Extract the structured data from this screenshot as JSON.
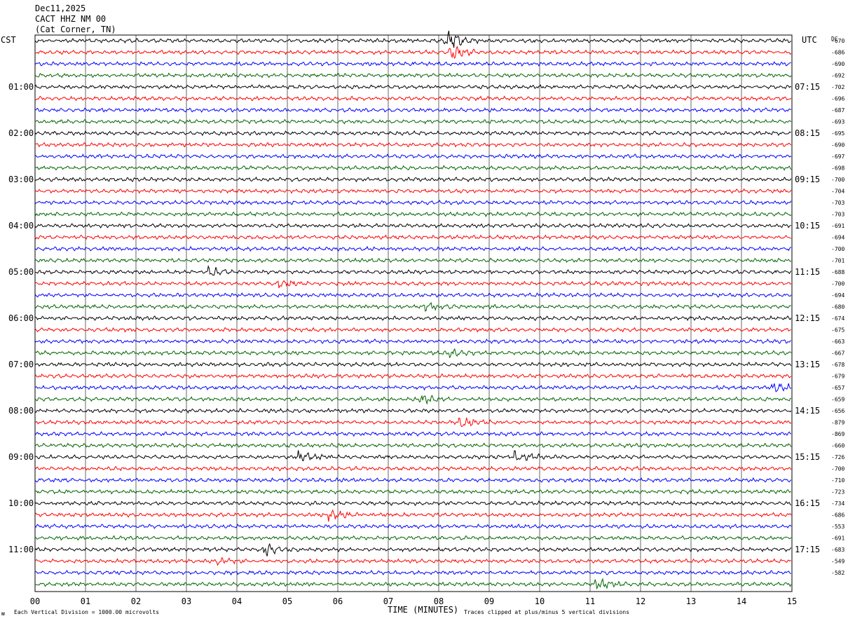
{
  "header": {
    "date": "Dec11,2025",
    "station": "CACT HHZ NM 00",
    "location": "(Cat Corner, TN)"
  },
  "axes": {
    "left_label": "CST",
    "right_label": "UTC",
    "dc_label": "DC",
    "x_title": "TIME (MINUTES)"
  },
  "footer": {
    "left_note": "Each Vertical Division = 1000.00 microvolts",
    "right_note": "Traces clipped at plus/minus 5 vertical divisions",
    "logo_mark": "ᴍ"
  },
  "colors": {
    "trace_cycle": [
      "#000000",
      "#ff0000",
      "#0000ff",
      "#006400"
    ],
    "grid": "#000000"
  },
  "chart_data": {
    "type": "line",
    "description_kind": "helicorder",
    "x_ticks": [
      "00",
      "01",
      "02",
      "03",
      "04",
      "05",
      "06",
      "07",
      "08",
      "09",
      "10",
      "11",
      "12",
      "13",
      "14",
      "15"
    ],
    "xlim": [
      0,
      15
    ],
    "rows_count": 48,
    "cst_labels": [
      "01:00",
      "02:00",
      "03:00",
      "04:00",
      "05:00",
      "06:00",
      "07:00",
      "08:00",
      "09:00",
      "10:00",
      "11:00"
    ],
    "utc_labels": [
      "07:15",
      "08:15",
      "09:15",
      "10:15",
      "11:15",
      "12:15",
      "13:15",
      "14:15",
      "15:15",
      "16:15",
      "17:15"
    ],
    "dc_values": [
      "-670",
      "-686",
      "-690",
      "-692",
      "-702",
      "-696",
      "-687",
      "-693",
      "-695",
      "-690",
      "-697",
      "-698",
      "-700",
      "-704",
      "-703",
      "-703",
      "-691",
      "-694",
      "-700",
      "-701",
      "-688",
      "-700",
      "-694",
      "-680",
      "-674",
      "-675",
      "-663",
      "-667",
      "-678",
      "-679",
      "-657",
      "-659",
      "-656",
      "-879",
      "-869",
      "-660",
      "-726",
      "-700",
      "-710",
      "-723",
      "-734",
      "-686",
      "-553",
      "-691",
      "-683",
      "-549",
      "-582"
    ],
    "events": [
      {
        "row": 0,
        "minute": 8.2,
        "amp": 4.5,
        "note": "large"
      },
      {
        "row": 1,
        "minute": 8.3,
        "amp": 2.5
      },
      {
        "row": 20,
        "minute": 3.5,
        "amp": 1.5
      },
      {
        "row": 21,
        "minute": 4.9,
        "amp": 1.3
      },
      {
        "row": 23,
        "minute": 7.8,
        "amp": 1.2
      },
      {
        "row": 27,
        "minute": 8.2,
        "amp": 1.4
      },
      {
        "row": 30,
        "minute": 14.7,
        "amp": 2.2
      },
      {
        "row": 31,
        "minute": 7.7,
        "amp": 1.5
      },
      {
        "row": 33,
        "minute": 8.5,
        "amp": 2.2
      },
      {
        "row": 36,
        "minute": 5.3,
        "amp": 2.0
      },
      {
        "row": 36,
        "minute": 9.6,
        "amp": 2.0
      },
      {
        "row": 41,
        "minute": 5.9,
        "amp": 1.8
      },
      {
        "row": 44,
        "minute": 4.6,
        "amp": 2.0
      },
      {
        "row": 45,
        "minute": 3.7,
        "amp": 1.5
      },
      {
        "row": 47,
        "minute": 11.2,
        "amp": 1.8
      }
    ]
  }
}
